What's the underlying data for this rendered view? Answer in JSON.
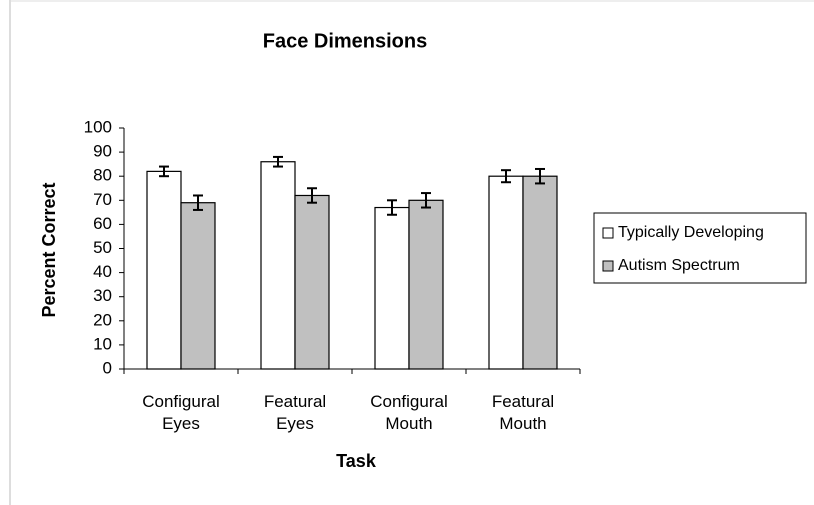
{
  "chart_data": {
    "type": "bar",
    "title": "Face Dimensions",
    "x_label": "Task",
    "y_label": "Percent Correct",
    "categories": [
      "Configural Eyes",
      "Featural Eyes",
      "Configural Mouth",
      "Featural Mouth"
    ],
    "series": [
      {
        "name": "Typically Developing",
        "color": "#ffffff",
        "values": [
          82,
          86,
          67,
          80
        ],
        "errors": [
          2,
          2,
          3,
          2.5
        ]
      },
      {
        "name": "Autism Spectrum",
        "color": "#c0c0c0",
        "values": [
          69,
          72,
          70,
          80
        ],
        "errors": [
          3,
          3,
          3,
          3
        ]
      }
    ],
    "ylim": [
      0,
      100
    ],
    "yticks": [
      0,
      10,
      20,
      30,
      40,
      50,
      60,
      70,
      80,
      90,
      100
    ],
    "grid": false,
    "legend": "right"
  }
}
